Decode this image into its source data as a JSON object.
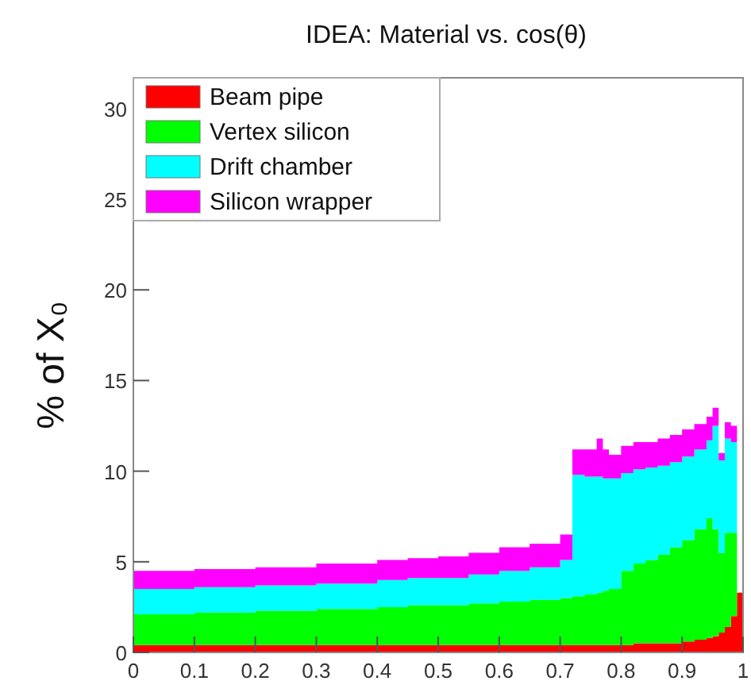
{
  "chart_data": {
    "type": "area",
    "title": "IDEA: Material vs. cos(θ)",
    "ylabel": "% of X₀",
    "stacked": true,
    "legend": "top left",
    "grid": false,
    "x": [
      0,
      0.05,
      0.1,
      0.15,
      0.2,
      0.25,
      0.3,
      0.35,
      0.4,
      0.45,
      0.5,
      0.55,
      0.6,
      0.65,
      0.7,
      0.72,
      0.74,
      0.76,
      0.77,
      0.78,
      0.8,
      0.82,
      0.84,
      0.86,
      0.88,
      0.9,
      0.92,
      0.94,
      0.95,
      0.96,
      0.97,
      0.98,
      0.99,
      1.0
    ],
    "series": [
      {
        "name": "Beam pipe",
        "color": "#ff0000",
        "values": [
          0.4,
          0.4,
          0.4,
          0.4,
          0.4,
          0.4,
          0.4,
          0.4,
          0.4,
          0.4,
          0.4,
          0.4,
          0.4,
          0.4,
          0.4,
          0.4,
          0.4,
          0.4,
          0.4,
          0.4,
          0.4,
          0.5,
          0.5,
          0.5,
          0.5,
          0.6,
          0.7,
          0.8,
          0.9,
          1.1,
          1.4,
          2.0,
          3.3,
          3.3
        ]
      },
      {
        "name": "Vertex silicon",
        "color": "#00ff00",
        "values": [
          1.7,
          1.7,
          1.8,
          1.8,
          1.9,
          1.9,
          2.0,
          2.0,
          2.1,
          2.2,
          2.2,
          2.3,
          2.4,
          2.5,
          2.6,
          2.7,
          2.8,
          2.9,
          3.0,
          3.1,
          4.1,
          4.4,
          4.6,
          4.9,
          5.3,
          5.6,
          6.1,
          6.6,
          5.9,
          4.4,
          5.2,
          4.6,
          0,
          0
        ]
      },
      {
        "name": "Drift chamber",
        "color": "#00ffff",
        "values": [
          1.4,
          1.4,
          1.4,
          1.4,
          1.4,
          1.4,
          1.4,
          1.4,
          1.5,
          1.5,
          1.5,
          1.6,
          1.7,
          1.8,
          2.1,
          6.7,
          6.5,
          6.4,
          6.2,
          6.1,
          5.4,
          5.2,
          5.1,
          4.9,
          4.7,
          4.6,
          4.4,
          4.3,
          5.7,
          5.1,
          5.2,
          5.0,
          0,
          0
        ]
      },
      {
        "name": "Silicon wrapper",
        "color": "#ff00ff",
        "values": [
          1.0,
          1.0,
          1.0,
          1.0,
          1.0,
          1.0,
          1.1,
          1.1,
          1.1,
          1.1,
          1.2,
          1.2,
          1.3,
          1.3,
          1.4,
          1.4,
          1.5,
          2.1,
          1.6,
          1.3,
          1.5,
          1.5,
          1.4,
          1.5,
          1.5,
          1.5,
          1.4,
          1.3,
          1.0,
          0.4,
          0.9,
          0.9,
          0,
          0
        ]
      }
    ],
    "xlim": [
      0,
      1
    ],
    "xticks": [
      0,
      0.1,
      0.2,
      0.3,
      0.4,
      0.5,
      0.6,
      0.7,
      0.8,
      0.9,
      1
    ],
    "ylim": [
      0,
      31.7
    ],
    "yticks": [
      0,
      5,
      10,
      15,
      20,
      25,
      30
    ]
  }
}
